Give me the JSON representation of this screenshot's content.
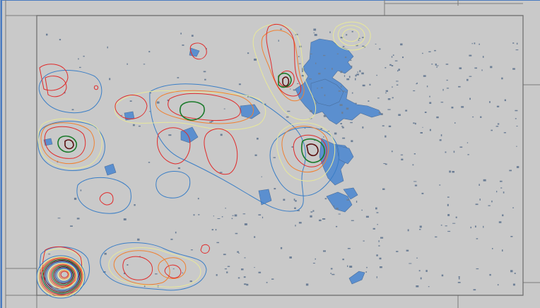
{
  "map": {
    "background": "#c9c9c9",
    "frame_color": "#4a7bc0",
    "boundary_color": "#7a7a7a",
    "city_fill": "#5b8fcf",
    "speck_fill": "#6d7f96",
    "contour_colors": {
      "outer": "#3a7ec6",
      "low": "#e8e89a",
      "mid": "#f08030",
      "high": "#e02a2a",
      "peak": "#1a7a2a",
      "core": "#5a1010"
    },
    "layers": [
      {
        "name": "urban-areas",
        "kind": "polygons"
      },
      {
        "name": "density-contours",
        "kind": "isolines",
        "levels": [
          "outer",
          "low",
          "mid",
          "high",
          "peak",
          "core"
        ]
      }
    ]
  }
}
